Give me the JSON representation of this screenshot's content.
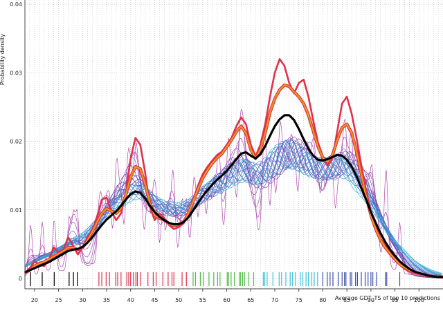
{
  "chart_data": {
    "type": "line",
    "title": "",
    "xlabel": "Average GDT_TS of top 10 predictions",
    "ylabel": "Probability density",
    "xlim": [
      18,
      105
    ],
    "ylim": [
      0,
      0.04
    ],
    "grid": true,
    "legend": "none",
    "x_ticks": [
      "20",
      "25",
      "30",
      "35",
      "40",
      "45",
      "50",
      "55",
      "60",
      "65",
      "70",
      "75",
      "80",
      "85",
      "90",
      "95",
      "100"
    ],
    "y_ticks": [
      "0",
      "0.01",
      "0.02",
      "0.03",
      "0.04"
    ],
    "colors": {
      "grid": "#9a9a9a",
      "low_bandwidth": "#b04bb0",
      "mid_bandwidth": "#4a55b8",
      "high_bandwidth": "#38b8e0",
      "highlight_red": "#e0304a",
      "highlight_orange": "#e89a1a",
      "smooth_black": "#000000"
    },
    "series": [
      {
        "style": "density_red",
        "x": [
          18,
          19,
          20,
          21,
          22,
          23,
          24,
          25,
          26,
          27,
          28,
          29,
          30,
          31,
          32,
          33,
          34,
          35,
          36,
          37,
          38,
          39,
          40,
          41,
          42,
          43,
          44,
          45,
          46,
          47,
          48,
          49,
          50,
          51,
          52,
          53,
          54,
          55,
          56,
          57,
          58,
          59,
          60,
          61,
          62,
          63,
          64,
          65,
          66,
          67,
          68,
          69,
          70,
          71,
          72,
          73,
          74,
          75,
          76,
          77,
          78,
          79,
          80,
          81,
          82,
          83,
          84,
          85,
          86,
          87,
          88,
          89,
          90,
          91,
          92,
          93,
          94,
          95,
          96,
          97,
          98,
          99,
          100,
          101,
          102,
          103,
          104,
          105
        ],
        "y": [
          0.0008,
          0.0015,
          0.0025,
          0.002,
          0.0018,
          0.0028,
          0.0045,
          0.0038,
          0.0042,
          0.006,
          0.0048,
          0.0035,
          0.0045,
          0.006,
          0.007,
          0.009,
          0.0115,
          0.0118,
          0.0098,
          0.0085,
          0.0095,
          0.0125,
          0.0175,
          0.0205,
          0.0195,
          0.0155,
          0.0105,
          0.0085,
          0.0095,
          0.0088,
          0.0078,
          0.0072,
          0.0075,
          0.008,
          0.0095,
          0.0115,
          0.0135,
          0.0152,
          0.0163,
          0.0172,
          0.018,
          0.0185,
          0.0195,
          0.0205,
          0.0222,
          0.0235,
          0.0225,
          0.0195,
          0.0178,
          0.0195,
          0.0225,
          0.0265,
          0.03,
          0.032,
          0.031,
          0.0285,
          0.027,
          0.0285,
          0.029,
          0.0265,
          0.023,
          0.0198,
          0.0178,
          0.0165,
          0.0175,
          0.0215,
          0.0255,
          0.0265,
          0.024,
          0.0205,
          0.0165,
          0.0128,
          0.0098,
          0.0075,
          0.0058,
          0.0048,
          0.0038,
          0.0028,
          0.002,
          0.0014,
          0.001,
          0.0008,
          0.0006,
          0.0005,
          0.0004,
          0.0003,
          0.0003,
          0.0002
        ]
      },
      {
        "style": "density_orange",
        "x": [
          18,
          19,
          20,
          21,
          22,
          23,
          24,
          25,
          26,
          27,
          28,
          29,
          30,
          31,
          32,
          33,
          34,
          35,
          36,
          37,
          38,
          39,
          40,
          41,
          42,
          43,
          44,
          45,
          46,
          47,
          48,
          49,
          50,
          51,
          52,
          53,
          54,
          55,
          56,
          57,
          58,
          59,
          60,
          61,
          62,
          63,
          64,
          65,
          66,
          67,
          68,
          69,
          70,
          71,
          72,
          73,
          74,
          75,
          76,
          77,
          78,
          79,
          80,
          81,
          82,
          83,
          84,
          85,
          86,
          87,
          88,
          89,
          90,
          91,
          92,
          93,
          94,
          95,
          96,
          97,
          98,
          99,
          100,
          101,
          102,
          103,
          104,
          105
        ],
        "y": [
          0.0008,
          0.0012,
          0.0018,
          0.0022,
          0.0024,
          0.0028,
          0.0032,
          0.0036,
          0.004,
          0.0045,
          0.0045,
          0.0042,
          0.0045,
          0.0055,
          0.0068,
          0.0082,
          0.0095,
          0.0102,
          0.0098,
          0.0095,
          0.0102,
          0.0122,
          0.0148,
          0.0163,
          0.016,
          0.0138,
          0.011,
          0.0092,
          0.0088,
          0.0085,
          0.008,
          0.0077,
          0.0078,
          0.0082,
          0.0095,
          0.0112,
          0.013,
          0.0146,
          0.0158,
          0.0168,
          0.0176,
          0.0182,
          0.0192,
          0.0202,
          0.0214,
          0.0222,
          0.0212,
          0.0188,
          0.0175,
          0.0188,
          0.0212,
          0.0242,
          0.0262,
          0.0275,
          0.0282,
          0.028,
          0.0272,
          0.0265,
          0.0255,
          0.0238,
          0.0215,
          0.0192,
          0.0176,
          0.017,
          0.018,
          0.0202,
          0.022,
          0.0225,
          0.0212,
          0.0185,
          0.0152,
          0.012,
          0.0092,
          0.0072,
          0.0056,
          0.0045,
          0.0036,
          0.0028,
          0.0021,
          0.0016,
          0.0012,
          0.0009,
          0.0007,
          0.0005,
          0.0004,
          0.0003,
          0.0003,
          0.0002
        ]
      },
      {
        "style": "density_black",
        "x": [
          18,
          19,
          20,
          21,
          22,
          23,
          24,
          25,
          26,
          27,
          28,
          29,
          30,
          31,
          32,
          33,
          34,
          35,
          36,
          37,
          38,
          39,
          40,
          41,
          42,
          43,
          44,
          45,
          46,
          47,
          48,
          49,
          50,
          51,
          52,
          53,
          54,
          55,
          56,
          57,
          58,
          59,
          60,
          61,
          62,
          63,
          64,
          65,
          66,
          67,
          68,
          69,
          70,
          71,
          72,
          73,
          74,
          75,
          76,
          77,
          78,
          79,
          80,
          81,
          82,
          83,
          84,
          85,
          86,
          87,
          88,
          89,
          90,
          91,
          92,
          93,
          94,
          95,
          96,
          97,
          98,
          99,
          100,
          101,
          102,
          103,
          104,
          105
        ],
        "y": [
          0.0009,
          0.0012,
          0.0015,
          0.0018,
          0.0021,
          0.0024,
          0.0028,
          0.0032,
          0.0036,
          0.004,
          0.0042,
          0.0043,
          0.0046,
          0.0052,
          0.006,
          0.0069,
          0.0078,
          0.0086,
          0.0092,
          0.0098,
          0.0106,
          0.0115,
          0.0123,
          0.0127,
          0.0125,
          0.0117,
          0.0106,
          0.0097,
          0.009,
          0.0085,
          0.0081,
          0.0079,
          0.0079,
          0.0082,
          0.0089,
          0.0099,
          0.011,
          0.012,
          0.0129,
          0.0137,
          0.0144,
          0.015,
          0.0157,
          0.0165,
          0.0174,
          0.0182,
          0.0184,
          0.0179,
          0.0175,
          0.0181,
          0.0193,
          0.0208,
          0.0222,
          0.0232,
          0.0238,
          0.0238,
          0.0231,
          0.0218,
          0.0203,
          0.0189,
          0.0179,
          0.0173,
          0.0172,
          0.0174,
          0.0177,
          0.018,
          0.0179,
          0.0173,
          0.0163,
          0.0149,
          0.0132,
          0.0115,
          0.0097,
          0.0081,
          0.0066,
          0.0053,
          0.0042,
          0.0033,
          0.0025,
          0.0019,
          0.0014,
          0.001,
          0.0008,
          0.0006,
          0.0004,
          0.0003,
          0.0002,
          0.0002
        ]
      }
    ],
    "rug": [
      {
        "color": "#000000",
        "x": [
          19.2,
          21.6,
          24.1,
          27.2,
          28.1,
          28.9
        ]
      },
      {
        "color": "#e0304a",
        "x": [
          33.4,
          34.0,
          34.9,
          35.6,
          36.9,
          37.3,
          38.0,
          39.2,
          39.6,
          40.0,
          40.6,
          41.1,
          41.4,
          42.1,
          43.6,
          44.7,
          45.3,
          46.7,
          47.8,
          48.6,
          49.0,
          50.7,
          51.6
        ]
      },
      {
        "color": "#52b84a",
        "x": [
          53.0,
          53.5,
          54.5,
          55.2,
          56.3,
          57.3,
          58.1,
          58.6,
          60.1,
          60.4,
          60.9,
          61.6,
          62.6,
          62.9,
          63.3,
          63.7,
          64.6,
          65.6
        ]
      },
      {
        "color": "#3ec2d9",
        "x": [
          67.6,
          67.9,
          68.4,
          69.6,
          70.9,
          71.4,
          72.3,
          73.2,
          73.7,
          74.3,
          75.3,
          75.7,
          76.5,
          77.0,
          77.7,
          78.2,
          78.9
        ]
      },
      {
        "color": "#3c4ea8",
        "x": [
          80.0,
          80.9,
          81.5,
          82.1,
          83.2,
          84.0,
          84.5,
          84.8,
          85.7,
          86.0,
          86.8,
          87.2,
          88.0,
          88.8,
          89.4,
          90.0,
          90.4,
          91.2,
          93.0,
          93.3,
          96.0
        ]
      }
    ]
  }
}
